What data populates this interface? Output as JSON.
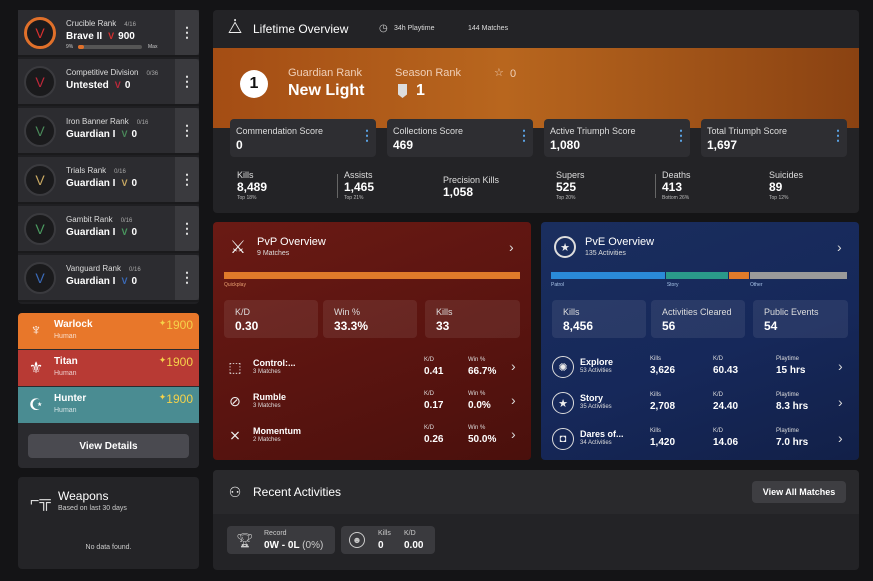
{
  "ranks": [
    {
      "title": "Crucible Rank",
      "progress": "4/16",
      "rank": "Brave II",
      "score": "900",
      "pct": "9%",
      "max": "Max",
      "color": "#d9302f"
    },
    {
      "title": "Competitive Division",
      "progress": "0/36",
      "rank": "Untested",
      "score": "0",
      "color": "#c0283a"
    },
    {
      "title": "Iron Banner Rank",
      "progress": "0/16",
      "rank": "Guardian I",
      "score": "0",
      "color": "#4a8a5a"
    },
    {
      "title": "Trials Rank",
      "progress": "0/16",
      "rank": "Guardian I",
      "score": "0",
      "color": "#c8a862"
    },
    {
      "title": "Gambit Rank",
      "progress": "0/16",
      "rank": "Guardian I",
      "score": "0",
      "color": "#4a9a60"
    },
    {
      "title": "Vanguard Rank",
      "progress": "0/16",
      "rank": "Guardian I",
      "score": "0",
      "color": "#3a6ab8"
    }
  ],
  "characters": [
    {
      "class": "Warlock",
      "race": "Human",
      "power": "1900",
      "bg": "#e8772a"
    },
    {
      "class": "Titan",
      "race": "Human",
      "power": "1900",
      "bg": "#b83a34"
    },
    {
      "class": "Hunter",
      "race": "Human",
      "power": "1900",
      "bg": "#4a8c92"
    }
  ],
  "view_details": "View Details",
  "weapons": {
    "title": "Weapons",
    "subtitle": "Based on last 30 days",
    "empty": "No data found."
  },
  "lifetime": {
    "title": "Lifetime Overview",
    "playtime": "34h Playtime",
    "matches": "144 Matches",
    "guardian_rank_num": "1",
    "guardian_rank_label": "Guardian Rank",
    "guardian_rank_value": "New Light",
    "season_rank_label": "Season Rank",
    "season_rank_value": "1",
    "star_count": "0",
    "scores": [
      {
        "label": "Commendation Score",
        "value": "0"
      },
      {
        "label": "Collections Score",
        "value": "469"
      },
      {
        "label": "Active Triumph Score",
        "value": "1,080"
      },
      {
        "label": "Total Triumph Score",
        "value": "1,697"
      }
    ],
    "stats": [
      {
        "label": "Kills",
        "value": "8,489",
        "sub": "Top 18%"
      },
      {
        "label": "Assists",
        "value": "1,465",
        "sub": "Top 21%"
      },
      {
        "label": "Precision Kills",
        "value": "1,058",
        "sub": ""
      },
      {
        "label": "Supers",
        "value": "525",
        "sub": "Top 20%"
      },
      {
        "label": "Deaths",
        "value": "413",
        "sub": "Bottom 26%"
      },
      {
        "label": "Suicides",
        "value": "89",
        "sub": "Top 12%"
      }
    ]
  },
  "pvp": {
    "title": "PvP Overview",
    "subtitle": "9 Matches",
    "bar_label": "Quickplay",
    "stats": [
      {
        "label": "K/D",
        "value": "0.30"
      },
      {
        "label": "Win %",
        "value": "33.3%"
      },
      {
        "label": "Kills",
        "value": "33"
      }
    ],
    "modes": [
      {
        "name": "Control:...",
        "count": "3 Matches",
        "kd": "0.41",
        "win": "66.7%"
      },
      {
        "name": "Rumble",
        "count": "3 Matches",
        "kd": "0.17",
        "win": "0.0%"
      },
      {
        "name": "Momentum",
        "count": "2 Matches",
        "kd": "0.26",
        "win": "50.0%"
      }
    ],
    "kd_label": "K/D",
    "win_label": "Win %"
  },
  "pve": {
    "title": "PvE Overview",
    "subtitle": "135 Activities",
    "bar": [
      {
        "label": "Patrol",
        "color": "#2a8ad8",
        "frac": 0.39
      },
      {
        "label": "Story",
        "color": "#2a9a8a",
        "frac": 0.21
      },
      {
        "label": "",
        "color": "#e07a2a",
        "frac": 0.07
      },
      {
        "label": "Other",
        "color": "#9a9a9a",
        "frac": 0.33
      }
    ],
    "stats": [
      {
        "label": "Kills",
        "value": "8,456"
      },
      {
        "label": "Activities Cleared",
        "value": "56"
      },
      {
        "label": "Public Events",
        "value": "54"
      }
    ],
    "modes": [
      {
        "name": "Explore",
        "count": "53 Activities",
        "kills": "3,626",
        "kd": "60.43",
        "playtime": "15 hrs"
      },
      {
        "name": "Story",
        "count": "35 Activities",
        "kills": "2,708",
        "kd": "24.40",
        "playtime": "8.3 hrs"
      },
      {
        "name": "Dares of...",
        "count": "34 Activities",
        "kills": "1,420",
        "kd": "14.06",
        "playtime": "7.0 hrs"
      }
    ],
    "kills_label": "Kills",
    "kd_label": "K/D",
    "playtime_label": "Playtime"
  },
  "recent": {
    "title": "Recent Activities",
    "button": "View All Matches",
    "record_label": "Record",
    "record_value": "0W - 0L",
    "record_pct": "(0%)",
    "kills_label": "Kills",
    "kills_value": "0",
    "kd_label": "K/D",
    "kd_value": "0.00"
  }
}
